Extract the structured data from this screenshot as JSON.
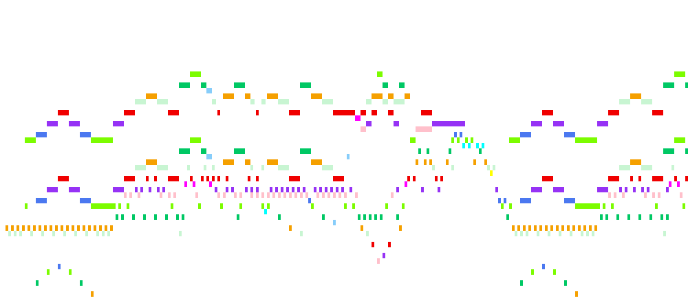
{
  "view": {
    "name": "piano-roll",
    "background": "#ffffff",
    "note_height": 8,
    "palette": {
      "lime": "#7cfc00",
      "green": "#00c864",
      "orange": "#f5a000",
      "mint": "#c8f5d2",
      "red": "#f00000",
      "purple": "#9632f5",
      "blue": "#4b78f0",
      "skyblue": "#87cdfa",
      "pink": "#ffc0cb",
      "magenta": "#ff00ff",
      "cyan": "#00ffff",
      "yellow": "#ffff00"
    }
  }
}
